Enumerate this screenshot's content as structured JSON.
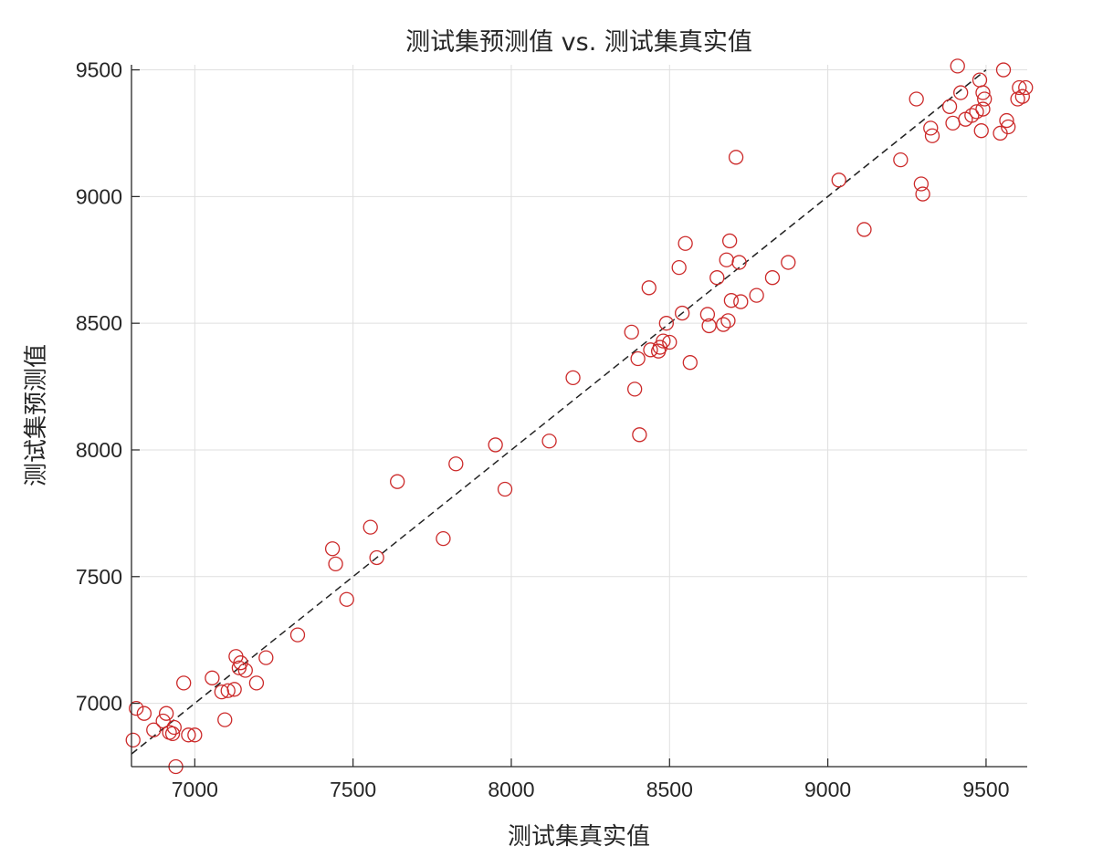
{
  "chart_data": {
    "type": "scatter",
    "title": "测试集预测值 vs. 测试集真实值",
    "xlabel": "测试集真实值",
    "ylabel": "测试集预测值",
    "xlim": [
      6800,
      9630
    ],
    "ylim": [
      6750,
      9520
    ],
    "xticks": [
      7000,
      7500,
      8000,
      8500,
      9000,
      9500
    ],
    "yticks": [
      7000,
      7500,
      8000,
      8500,
      9000,
      9500
    ],
    "grid": true,
    "reference_line": {
      "style": "dashed",
      "color": "#222222",
      "x": [
        6800,
        9500
      ],
      "y": [
        6800,
        9500
      ]
    },
    "colors": {
      "points": "#cc2a2a",
      "reference": "#222222",
      "grid": "#dfdfdf"
    },
    "series": [
      {
        "marker": "circle",
        "points": [
          [
            6805,
            6855
          ],
          [
            6815,
            6980
          ],
          [
            6840,
            6960
          ],
          [
            6870,
            6895
          ],
          [
            6900,
            6930
          ],
          [
            6910,
            6960
          ],
          [
            6920,
            6885
          ],
          [
            6930,
            6880
          ],
          [
            6935,
            6905
          ],
          [
            6940,
            6750
          ],
          [
            6965,
            7080
          ],
          [
            6980,
            6875
          ],
          [
            7000,
            6875
          ],
          [
            7055,
            7100
          ],
          [
            7085,
            7045
          ],
          [
            7095,
            6935
          ],
          [
            7105,
            7050
          ],
          [
            7125,
            7055
          ],
          [
            7130,
            7185
          ],
          [
            7140,
            7140
          ],
          [
            7145,
            7160
          ],
          [
            7160,
            7130
          ],
          [
            7195,
            7080
          ],
          [
            7225,
            7180
          ],
          [
            7325,
            7270
          ],
          [
            7435,
            7610
          ],
          [
            7445,
            7550
          ],
          [
            7480,
            7410
          ],
          [
            7555,
            7695
          ],
          [
            7575,
            7575
          ],
          [
            7640,
            7875
          ],
          [
            7785,
            7650
          ],
          [
            7825,
            7945
          ],
          [
            7950,
            8020
          ],
          [
            7980,
            7845
          ],
          [
            8120,
            8035
          ],
          [
            8195,
            8285
          ],
          [
            8380,
            8465
          ],
          [
            8390,
            8240
          ],
          [
            8400,
            8360
          ],
          [
            8405,
            8060
          ],
          [
            8435,
            8640
          ],
          [
            8440,
            8395
          ],
          [
            8465,
            8390
          ],
          [
            8470,
            8405
          ],
          [
            8480,
            8430
          ],
          [
            8490,
            8500
          ],
          [
            8500,
            8425
          ],
          [
            8530,
            8720
          ],
          [
            8540,
            8540
          ],
          [
            8550,
            8815
          ],
          [
            8565,
            8345
          ],
          [
            8620,
            8535
          ],
          [
            8625,
            8490
          ],
          [
            8650,
            8680
          ],
          [
            8670,
            8495
          ],
          [
            8680,
            8750
          ],
          [
            8685,
            8510
          ],
          [
            8690,
            8825
          ],
          [
            8695,
            8590
          ],
          [
            8710,
            9155
          ],
          [
            8720,
            8740
          ],
          [
            8725,
            8585
          ],
          [
            8775,
            8610
          ],
          [
            8825,
            8680
          ],
          [
            8875,
            8740
          ],
          [
            9035,
            9065
          ],
          [
            9115,
            8870
          ],
          [
            9230,
            9145
          ],
          [
            9280,
            9385
          ],
          [
            9295,
            9050
          ],
          [
            9300,
            9010
          ],
          [
            9325,
            9270
          ],
          [
            9330,
            9240
          ],
          [
            9385,
            9355
          ],
          [
            9395,
            9290
          ],
          [
            9410,
            9515
          ],
          [
            9420,
            9410
          ],
          [
            9435,
            9305
          ],
          [
            9455,
            9320
          ],
          [
            9470,
            9335
          ],
          [
            9480,
            9460
          ],
          [
            9485,
            9260
          ],
          [
            9490,
            9345
          ],
          [
            9490,
            9410
          ],
          [
            9495,
            9385
          ],
          [
            9545,
            9250
          ],
          [
            9555,
            9500
          ],
          [
            9565,
            9300
          ],
          [
            9570,
            9275
          ],
          [
            9600,
            9385
          ],
          [
            9605,
            9430
          ],
          [
            9615,
            9395
          ],
          [
            9625,
            9430
          ]
        ]
      }
    ]
  }
}
